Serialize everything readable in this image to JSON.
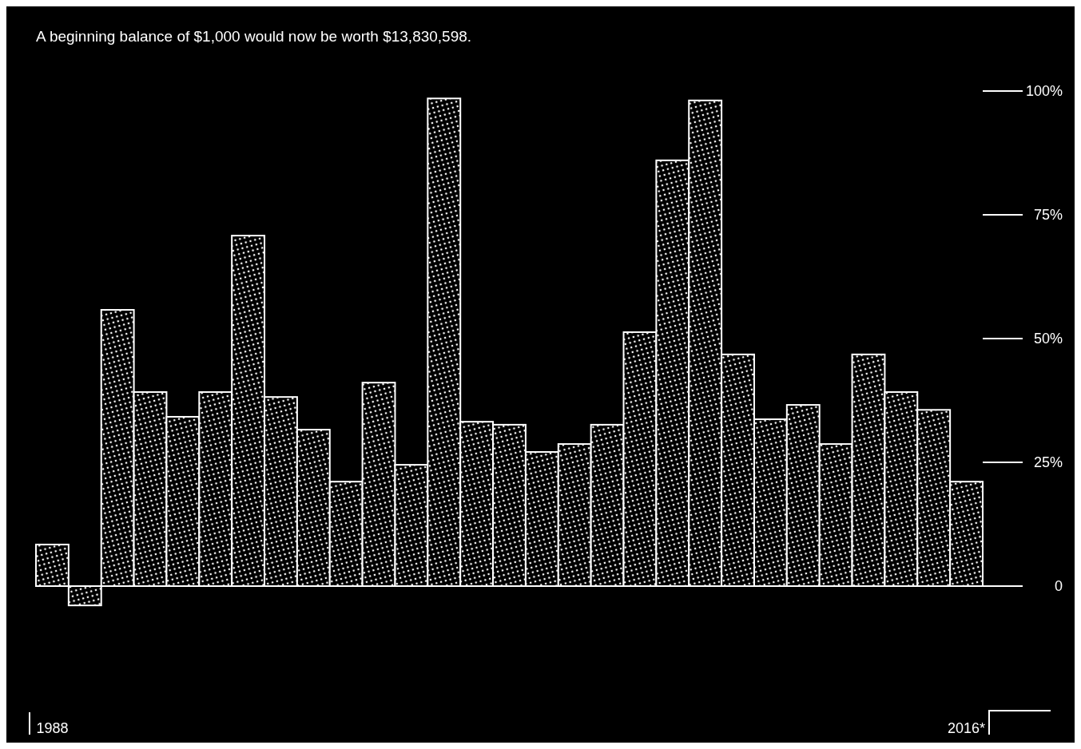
{
  "chart_data": {
    "type": "bar",
    "title": "A beginning balance of $1,000 would now be worth $13,830,598.",
    "categories": [
      "1988",
      null,
      null,
      null,
      null,
      null,
      null,
      null,
      null,
      null,
      null,
      null,
      null,
      null,
      null,
      null,
      null,
      null,
      null,
      null,
      null,
      null,
      null,
      null,
      null,
      null,
      null,
      null,
      "2016*"
    ],
    "values": [
      8.4,
      -3.9,
      55.8,
      39.2,
      34.2,
      39.2,
      70.8,
      38.2,
      31.6,
      21.1,
      41.1,
      24.5,
      98.5,
      33.2,
      32.6,
      27.1,
      28.7,
      32.6,
      51.3,
      86.0,
      98.1,
      46.8,
      33.7,
      36.6,
      28.7,
      46.8,
      39.2,
      35.6,
      21.1
    ],
    "color": "#ffffff",
    "ylim": [
      -3.9,
      100
    ],
    "yticks": [
      {
        "value": 0,
        "label": "0"
      },
      {
        "value": 25,
        "label": "25%"
      },
      {
        "value": 50,
        "label": "50%"
      },
      {
        "value": 75,
        "label": "75%"
      },
      {
        "value": 100,
        "label": "100%"
      }
    ],
    "grid": false
  }
}
